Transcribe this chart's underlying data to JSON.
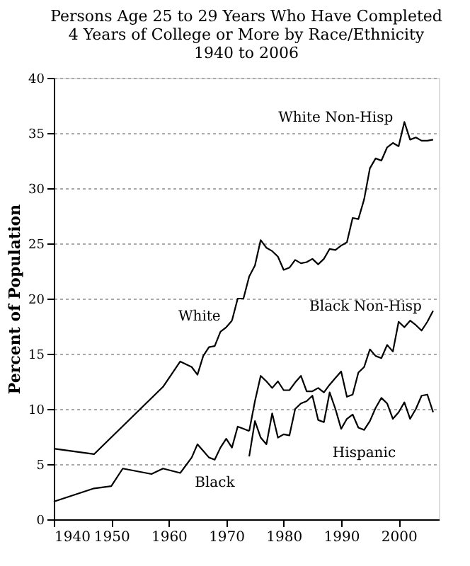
{
  "chart_data": {
    "type": "line",
    "title": [
      "Persons Age 25 to 29 Years Who Have Completed",
      "4 Years of College or More by Race/Ethnicity",
      "1940 to 2006"
    ],
    "ylabel": "Percent of Population",
    "xlim": [
      1940,
      2007
    ],
    "xticks": [
      1940,
      1950,
      1960,
      1970,
      1980,
      1990,
      2000
    ],
    "ylim": [
      0,
      40
    ],
    "yticks": [
      0,
      5,
      10,
      15,
      20,
      25,
      30,
      35,
      40
    ],
    "grid": "y",
    "marker": "none",
    "line_style": "solid",
    "series": [
      {
        "name": "White",
        "color": "#000000",
        "x": [
          1940,
          1947,
          1959,
          1962,
          1964,
          1965,
          1966,
          1967,
          1968,
          1969,
          1970,
          1971
        ],
        "values": [
          6.4,
          5.9,
          12.0,
          14.3,
          13.8,
          13.1,
          14.8,
          15.6,
          15.7,
          17.0,
          17.4,
          18.0
        ]
      },
      {
        "name": "White Non-Hisp",
        "color": "#000000",
        "x": [
          1971,
          1972,
          1973,
          1974,
          1975,
          1976,
          1977,
          1978,
          1979,
          1980,
          1981,
          1982,
          1983,
          1984,
          1985,
          1986,
          1987,
          1988,
          1989,
          1990,
          1991,
          1992,
          1993,
          1994,
          1995,
          1996,
          1997,
          1998,
          1999,
          2000,
          2001,
          2002,
          2003,
          2004,
          2005,
          2006
        ],
        "values": [
          18.0,
          20.0,
          20.0,
          22.0,
          23.0,
          25.3,
          24.6,
          24.3,
          23.8,
          22.6,
          22.8,
          23.5,
          23.2,
          23.3,
          23.6,
          23.1,
          23.6,
          24.5,
          24.4,
          24.8,
          25.1,
          27.3,
          27.2,
          29.0,
          31.8,
          32.7,
          32.5,
          33.7,
          34.1,
          33.8,
          36.0,
          34.4,
          34.6,
          34.3,
          34.3,
          34.4
        ]
      },
      {
        "name": "Black",
        "color": "#000000",
        "x": [
          1940,
          1947,
          1950,
          1952,
          1957,
          1959,
          1962,
          1964,
          1965,
          1966,
          1967,
          1968,
          1969,
          1970,
          1971,
          1972,
          1973,
          1974
        ],
        "values": [
          1.6,
          2.8,
          3.0,
          4.6,
          4.1,
          4.6,
          4.2,
          5.6,
          6.8,
          6.2,
          5.6,
          5.4,
          6.5,
          7.3,
          6.5,
          8.4,
          8.2,
          8.0
        ]
      },
      {
        "name": "Black Non-Hisp",
        "color": "#000000",
        "x": [
          1974,
          1975,
          1976,
          1977,
          1978,
          1979,
          1980,
          1981,
          1982,
          1983,
          1984,
          1985,
          1986,
          1987,
          1988,
          1989,
          1990,
          1991,
          1992,
          1993,
          1994,
          1995,
          1996,
          1997,
          1998,
          1999,
          2000,
          2001,
          2002,
          2003,
          2004,
          2005,
          2006
        ],
        "values": [
          8.0,
          10.7,
          13.0,
          12.5,
          11.9,
          12.5,
          11.7,
          11.7,
          12.4,
          13.0,
          11.6,
          11.6,
          11.9,
          11.5,
          12.2,
          12.8,
          13.4,
          11.1,
          11.3,
          13.3,
          13.8,
          15.4,
          14.8,
          14.6,
          15.8,
          15.2,
          17.9,
          17.4,
          18.0,
          17.6,
          17.1,
          17.9,
          18.9
        ]
      },
      {
        "name": "Hispanic",
        "color": "#000000",
        "x": [
          1974,
          1975,
          1976,
          1977,
          1978,
          1979,
          1980,
          1981,
          1982,
          1983,
          1984,
          1985,
          1986,
          1987,
          1988,
          1989,
          1990,
          1991,
          1992,
          1993,
          1994,
          1995,
          1996,
          1997,
          1998,
          1999,
          2000,
          2001,
          2002,
          2003,
          2004,
          2005,
          2006
        ],
        "values": [
          5.7,
          8.9,
          7.4,
          6.8,
          9.6,
          7.4,
          7.7,
          7.6,
          10.0,
          10.5,
          10.7,
          11.2,
          9.0,
          8.8,
          11.5,
          10.0,
          8.2,
          9.1,
          9.5,
          8.3,
          8.1,
          8.9,
          10.1,
          11.0,
          10.5,
          9.1,
          9.7,
          10.6,
          9.1,
          10.0,
          11.2,
          11.3,
          9.7
        ]
      }
    ]
  }
}
